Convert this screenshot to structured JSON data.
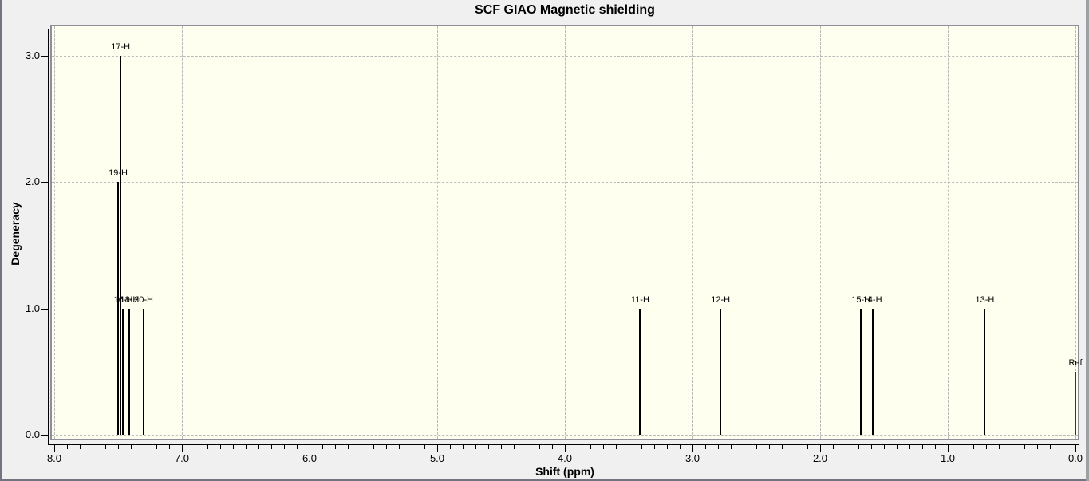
{
  "window": {
    "title": "SCF GIAO Magnetic shielding"
  },
  "colors": {
    "plot_background": "#fffff0",
    "outer_background": "#f0f0f0",
    "frame_border": "#8f8f9b",
    "window_border_dark": "#74747e",
    "window_border_light": "#9fa0a6",
    "gridline": "#b9b9b9",
    "peak_default": "#000000",
    "peak_reference": "#2222cc",
    "text": "#000000"
  },
  "chart_data": {
    "type": "bar",
    "subtype": "stick-spectrum",
    "title": "SCF GIAO Magnetic shielding",
    "xlabel": "Shift (ppm)",
    "ylabel": "Degeneracy",
    "xlim": [
      8.03,
      -0.03
    ],
    "x_reversed": true,
    "ylim": [
      0,
      3.25
    ],
    "x_major_tick_step": 1.0,
    "x_minor_tick_step": 0.1,
    "x_ticks": [
      "8.0",
      "7.0",
      "6.0",
      "5.0",
      "4.0",
      "3.0",
      "2.0",
      "1.0",
      "0.0"
    ],
    "x_tick_values": [
      8.0,
      7.0,
      6.0,
      5.0,
      4.0,
      3.0,
      2.0,
      1.0,
      0.0
    ],
    "y_ticks": [
      "0.0",
      "1.0",
      "2.0",
      "3.0"
    ],
    "y_tick_values": [
      0.0,
      1.0,
      2.0,
      3.0
    ],
    "grid": true,
    "grid_style": "dashed",
    "vertical_gridlines_ppm": [
      8.0,
      7.0,
      6.0,
      5.0,
      4.0,
      3.0,
      2.0,
      1.0,
      0.0
    ],
    "horizontal_gridlines_degeneracy": [
      0.0,
      1.0,
      2.0,
      3.0
    ],
    "peaks": [
      {
        "label": "19-H",
        "shift_ppm": 7.5,
        "degeneracy": 2.0,
        "color": "#000000"
      },
      {
        "label": "17-H",
        "shift_ppm": 7.48,
        "degeneracy": 3.0,
        "color": "#000000"
      },
      {
        "label": "16-H",
        "shift_ppm": 7.46,
        "degeneracy": 1.0,
        "color": "#000000"
      },
      {
        "label": "18-H",
        "shift_ppm": 7.41,
        "degeneracy": 1.0,
        "color": "#000000"
      },
      {
        "label": "20-H",
        "shift_ppm": 7.3,
        "degeneracy": 1.0,
        "color": "#000000"
      },
      {
        "label": "11-H",
        "shift_ppm": 3.41,
        "degeneracy": 1.0,
        "color": "#000000"
      },
      {
        "label": "12-H",
        "shift_ppm": 2.78,
        "degeneracy": 1.0,
        "color": "#000000"
      },
      {
        "label": "15-H",
        "shift_ppm": 1.68,
        "degeneracy": 1.0,
        "color": "#000000"
      },
      {
        "label": "14-H",
        "shift_ppm": 1.59,
        "degeneracy": 1.0,
        "color": "#000000"
      },
      {
        "label": "13-H",
        "shift_ppm": 0.71,
        "degeneracy": 1.0,
        "color": "#000000"
      },
      {
        "label": "Ref",
        "shift_ppm": 0.0,
        "degeneracy": 0.5,
        "color": "#2222cc"
      }
    ]
  }
}
